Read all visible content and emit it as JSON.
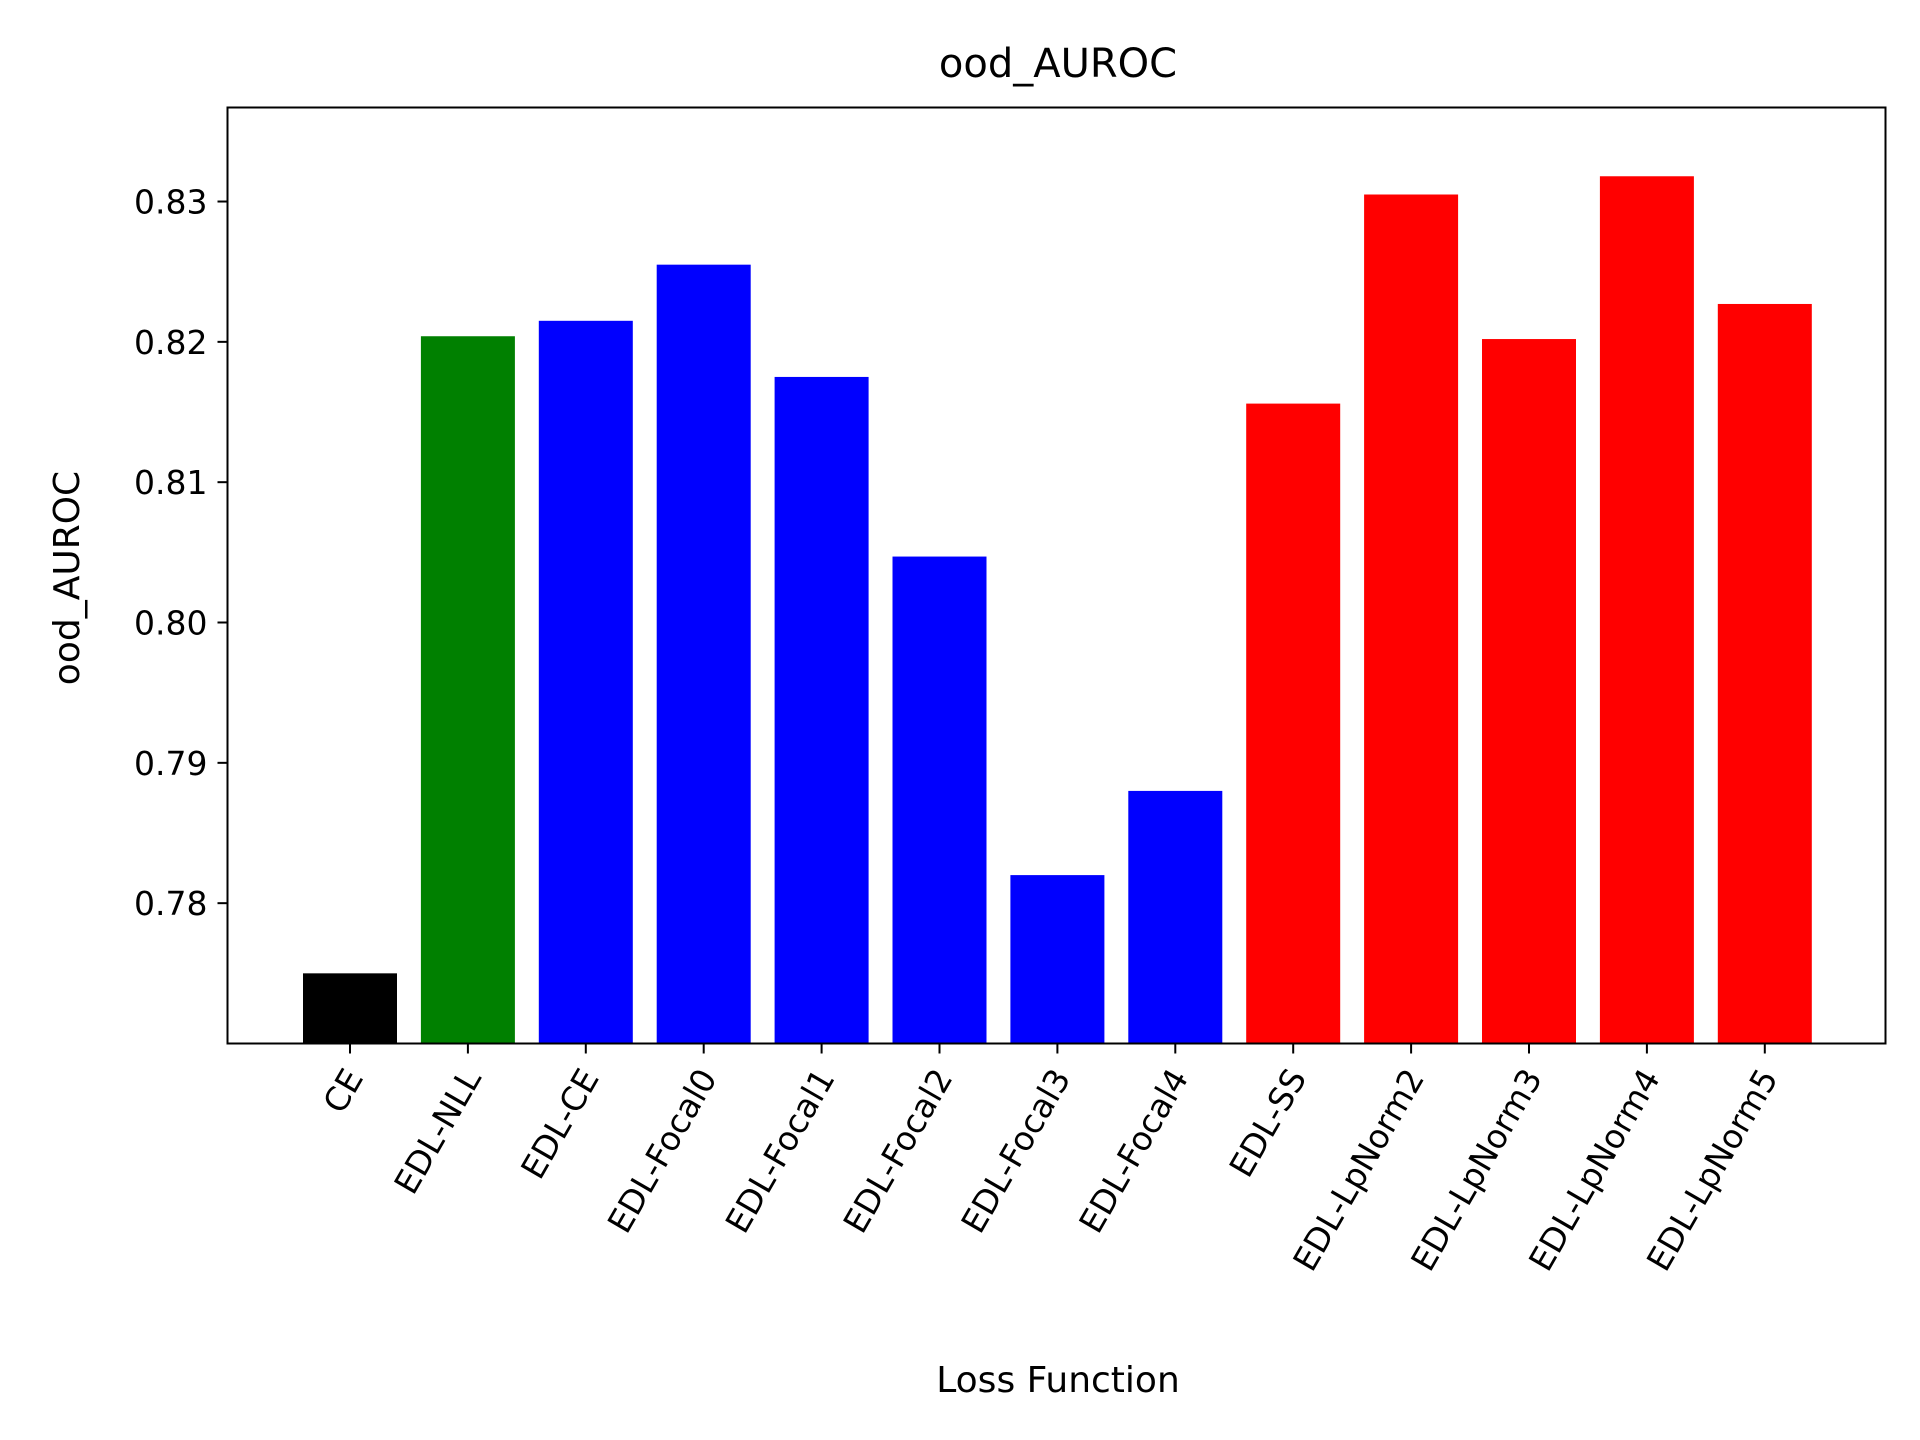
{
  "chart_data": {
    "type": "bar",
    "title": "ood_AUROC",
    "xlabel": "Loss Function",
    "ylabel": "ood_AUROC",
    "categories": [
      "CE",
      "EDL-NLL",
      "EDL-CE",
      "EDL-Focal0",
      "EDL-Focal1",
      "EDL-Focal2",
      "EDL-Focal3",
      "EDL-Focal4",
      "EDL-SS",
      "EDL-LpNorm2",
      "EDL-LpNorm3",
      "EDL-LpNorm4",
      "EDL-LpNorm5"
    ],
    "values": [
      0.775,
      0.8204,
      0.8215,
      0.8255,
      0.8175,
      0.8047,
      0.782,
      0.788,
      0.8156,
      0.8305,
      0.8202,
      0.8318,
      0.8227
    ],
    "colors": [
      "#000000",
      "#008000",
      "#0000ff",
      "#0000ff",
      "#0000ff",
      "#0000ff",
      "#0000ff",
      "#0000ff",
      "#ff0000",
      "#ff0000",
      "#ff0000",
      "#ff0000",
      "#ff0000"
    ],
    "yticks": [
      0.78,
      0.79,
      0.8,
      0.81,
      0.82,
      0.83
    ],
    "ytick_labels": [
      "0.78",
      "0.79",
      "0.80",
      "0.81",
      "0.82",
      "0.83"
    ],
    "ylim": [
      0.77,
      0.8367
    ],
    "grid": false,
    "legend": "none"
  }
}
